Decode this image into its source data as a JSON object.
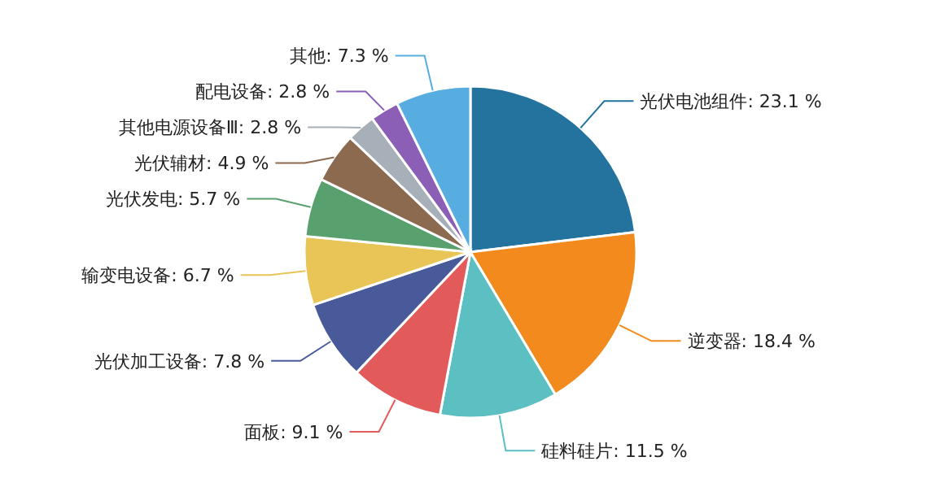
{
  "chart_data": {
    "type": "pie",
    "categories": [
      "光伏电池组件",
      "逆变器",
      "硅料硅片",
      "面板",
      "光伏加工设备",
      "输变电设备",
      "光伏发电",
      "光伏辅材",
      "其他电源设备Ⅲ",
      "配电设备",
      "其他"
    ],
    "values": [
      23.1,
      18.4,
      11.5,
      9.1,
      7.8,
      6.7,
      5.7,
      4.9,
      2.8,
      2.8,
      7.3
    ],
    "value_labels": [
      "23.1 %",
      "18.4 %",
      "11.5 %",
      "9.1 %",
      "7.8 %",
      "6.7 %",
      "5.7 %",
      "4.9 %",
      "2.8 %",
      "2.8 %",
      "7.3 %"
    ],
    "colors": [
      "#24739f",
      "#f38a1d",
      "#5cbfc2",
      "#e35a5b",
      "#485a9a",
      "#e8c556",
      "#58a06e",
      "#8b6a4f",
      "#a7afb8",
      "#8a5fb5",
      "#57ade0"
    ],
    "legend": false
  }
}
